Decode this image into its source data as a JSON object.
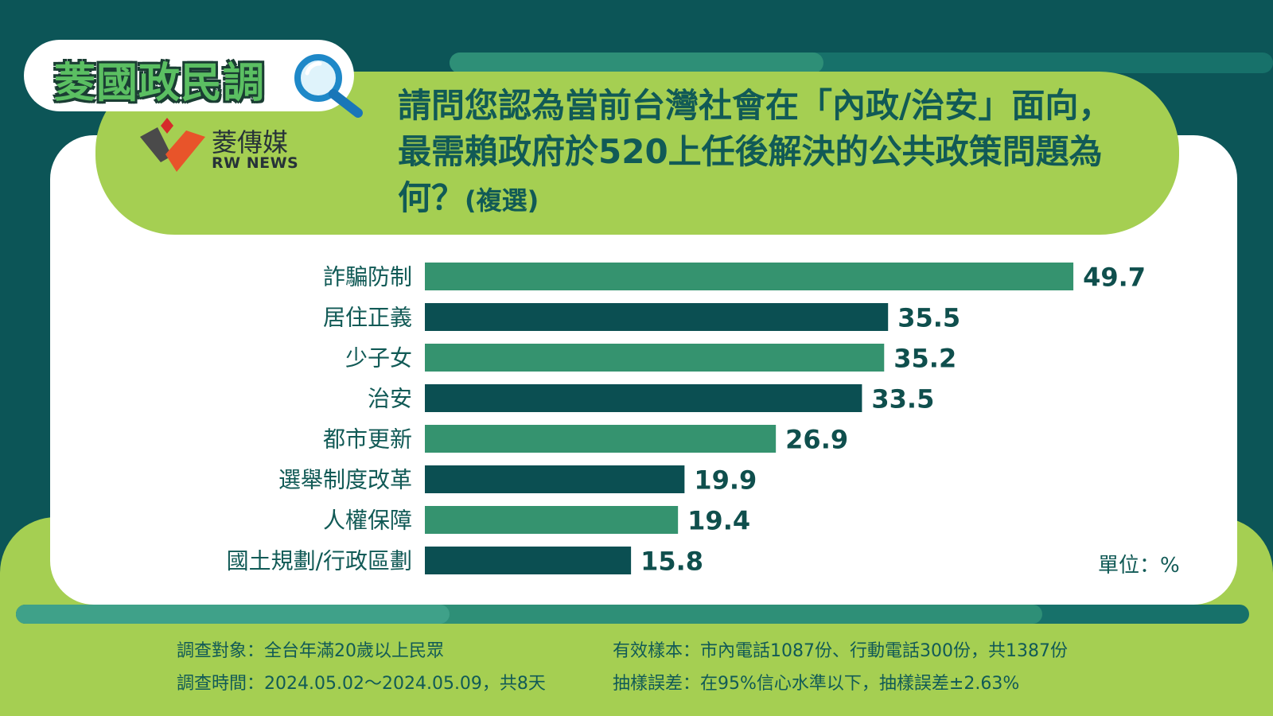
{
  "header": {
    "badge": "菱國政民調",
    "logo_name": "菱傳媒",
    "logo_sub": "RW NEWS",
    "question_main": "請問您認為當前台灣社會在「內政/治安」面向，最需賴政府於520上任後解決的公共政策問題為何？",
    "question_sub": "(複選)"
  },
  "colors": {
    "bar_light": "#35936f",
    "bar_dark": "#0b4f52",
    "background": "#0c5557",
    "lime": "#a5cf52"
  },
  "chart_data": {
    "type": "bar",
    "orientation": "horizontal",
    "categories": [
      "詐騙防制",
      "居住正義",
      "少子女",
      "治安",
      "都市更新",
      "選舉制度改革",
      "人權保障",
      "國土規劃/行政區劃"
    ],
    "values": [
      49.7,
      35.5,
      35.2,
      33.5,
      26.9,
      19.9,
      19.4,
      15.8
    ],
    "value_labels": [
      "49.7",
      "35.5",
      "35.2",
      "33.5",
      "26.9",
      "19.9",
      "19.4",
      "15.8"
    ],
    "unit": "單位：%",
    "xlim": [
      0,
      50
    ],
    "grid": false,
    "legend": "none"
  },
  "footer": {
    "target": "調查對象：全台年滿20歲以上民眾",
    "period": "調查時間：2024.05.02～2024.05.09，共8天",
    "sample": "有效樣本：市內電話1087份、行動電話300份，共1387份",
    "error": "抽樣誤差：在95%信心水準以下，抽樣誤差±2.63%"
  }
}
